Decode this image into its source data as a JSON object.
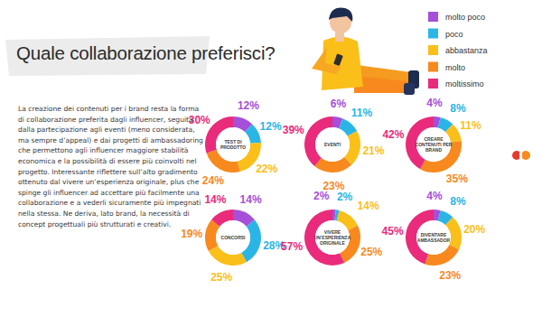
{
  "title": "Quale collaborazione preferisci?",
  "text": "La creazione dei contenuti per i brand resta la forma di collaborazione preferita dagli influencer, seguita dalla partecipazione agli eventi (meno considerata, ma sempre d’appeal) e dai progetti di ambassadoring che permettono agli influencer maggiore stabilità economica e la possibilità di essere più coinvolti nel progetto. Interessante riflettere sull’alto gradimento ottenuto dal vivere un’esperienza originale, plus che spinge gli influencer ad accettare più facilmente una collaborazione e a vederli sicuramente più impegnati nella stessa. Ne deriva, lato brand, la necessità di concept progettuali più strutturati e creativi.",
  "legend": {
    "items": [
      {
        "label": "molto poco",
        "color": "#a64fd8"
      },
      {
        "label": "poco",
        "color": "#2bb5e6"
      },
      {
        "label": "abbastanza",
        "color": "#fbbf1a"
      },
      {
        "label": "molto",
        "color": "#f7891e"
      },
      {
        "label": "moltissimo",
        "color": "#ea2b7b"
      }
    ]
  },
  "chart_data": [
    {
      "type": "pie",
      "title": "TEST DI PRODOTTO",
      "values": [
        12,
        12,
        22,
        24,
        30
      ],
      "value_labels": [
        "12%",
        "12%",
        "22%",
        "24%",
        "30%"
      ],
      "colors": [
        "#a64fd8",
        "#2bb5e6",
        "#fbbf1a",
        "#f7891e",
        "#ea2b7b"
      ],
      "data_labels": true
    },
    {
      "type": "pie",
      "title": "EVENTI",
      "values": [
        6,
        11,
        21,
        23,
        39
      ],
      "value_labels": [
        "6%",
        "11%",
        "21%",
        "23%",
        "39%"
      ],
      "colors": [
        "#a64fd8",
        "#2bb5e6",
        "#fbbf1a",
        "#f7891e",
        "#ea2b7b"
      ],
      "data_labels": true
    },
    {
      "type": "pie",
      "title": "CREARE CONTENUTI PER BRAND",
      "values": [
        4,
        8,
        11,
        35,
        42
      ],
      "value_labels": [
        "4%",
        "8%",
        "11%",
        "35%",
        "42%"
      ],
      "colors": [
        "#a64fd8",
        "#2bb5e6",
        "#fbbf1a",
        "#f7891e",
        "#ea2b7b"
      ],
      "data_labels": true
    },
    {
      "type": "pie",
      "title": "CONCORSI",
      "values": [
        14,
        28,
        25,
        19,
        14
      ],
      "value_labels": [
        "14%",
        "28%",
        "25%",
        "19%",
        "14%"
      ],
      "colors": [
        "#a64fd8",
        "#2bb5e6",
        "#fbbf1a",
        "#f7891e",
        "#ea2b7b"
      ],
      "data_labels": true
    },
    {
      "type": "pie",
      "title": "VIVERE UN’ESPERIENZA ORIGINALE",
      "values": [
        2,
        2,
        14,
        25,
        57
      ],
      "value_labels": [
        "2%",
        "2%",
        "14%",
        "25%",
        "57%"
      ],
      "colors": [
        "#a64fd8",
        "#2bb5e6",
        "#fbbf1a",
        "#f7891e",
        "#ea2b7b"
      ],
      "data_labels": true
    },
    {
      "type": "pie",
      "title": "DIVENTARE AMBASSADOR",
      "values": [
        4,
        8,
        20,
        23,
        45
      ],
      "value_labels": [
        "4%",
        "8%",
        "20%",
        "23%",
        "45%"
      ],
      "colors": [
        "#a64fd8",
        "#2bb5e6",
        "#fbbf1a",
        "#f7891e",
        "#ea2b7b"
      ],
      "data_labels": true
    }
  ]
}
